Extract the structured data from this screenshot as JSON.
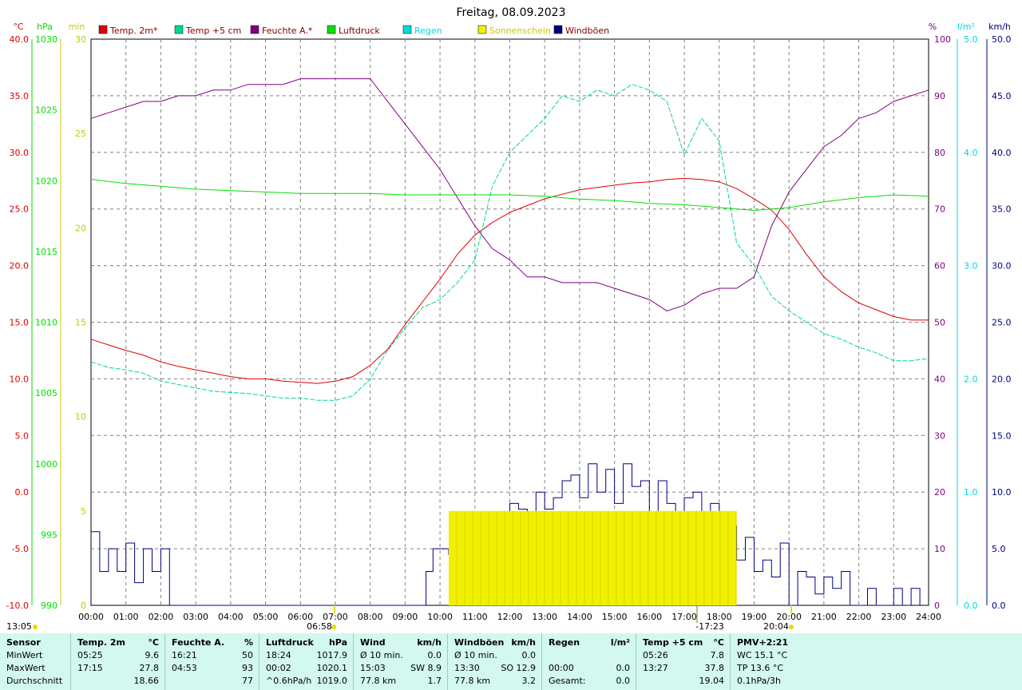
{
  "title": "Freitag, 08.09.2023",
  "colors": {
    "temp": "#e00000",
    "temp5": "#00d890",
    "feuchte": "#800080",
    "luftdruck": "#00e000",
    "regen": "#00d8e0",
    "sonne": "#f0f000",
    "wind": "#000080",
    "grid": "#808080",
    "footer_bg": "#d2f8f0"
  },
  "axes": {
    "temp": {
      "unit": "°C",
      "ticks": [
        "40.0",
        "35.0",
        "30.0",
        "25.0",
        "20.0",
        "15.0",
        "10.0",
        "5.0",
        "0.0",
        "-5.0",
        "-10.0"
      ],
      "range": [
        -10,
        40
      ]
    },
    "pressure": {
      "unit": "hPa",
      "ticks": [
        "1030",
        "1025",
        "1020",
        "1015",
        "1010",
        "1005",
        "1000",
        "995",
        "990"
      ],
      "range": [
        990,
        1030
      ]
    },
    "minutes": {
      "unit": "min",
      "ticks": [
        "30",
        "25",
        "20",
        "15",
        "10",
        "5",
        "0"
      ],
      "range": [
        0,
        30
      ]
    },
    "percent": {
      "unit": "%",
      "ticks": [
        "100",
        "90",
        "80",
        "70",
        "60",
        "50",
        "40",
        "30",
        "20",
        "10",
        "0"
      ],
      "range": [
        0,
        100
      ]
    },
    "rain": {
      "unit": "l/m²",
      "ticks": [
        "5.0",
        "4.0",
        "3.0",
        "2.0",
        "1.0",
        "0.0"
      ],
      "range": [
        0,
        5
      ]
    },
    "kmh": {
      "unit": "km/h",
      "ticks": [
        "50.0",
        "45.0",
        "40.0",
        "35.0",
        "30.0",
        "25.0",
        "20.0",
        "15.0",
        "10.0",
        "5.0",
        "0.0"
      ],
      "range": [
        0,
        50
      ]
    },
    "x_ticks": [
      "00:00",
      "01:00",
      "02:00",
      "03:00",
      "04:00",
      "05:00",
      "06:00",
      "07:00",
      "08:00",
      "09:00",
      "10:00",
      "11:00",
      "12:00",
      "13:00",
      "14:00",
      "15:00",
      "16:00",
      "17:00",
      "18:00",
      "19:00",
      "20:00",
      "21:00",
      "22:00",
      "23:00",
      "24:00"
    ]
  },
  "legend": [
    {
      "label": "Temp. 2m*",
      "color": "#e00000"
    },
    {
      "label": "Temp +5 cm",
      "color": "#00d890"
    },
    {
      "label": "Feuchte A.*",
      "color": "#800080"
    },
    {
      "label": "Luftdruck",
      "color": "#00e000"
    },
    {
      "label": "Regen",
      "color": "#00d8e0"
    },
    {
      "label": "Sonnenschein",
      "color": "#f0f000"
    },
    {
      "label": "Windböen",
      "color": "#000080"
    }
  ],
  "markers": {
    "sunrise": "06:58",
    "sunset": "20:04",
    "moon": "13:05",
    "noon": "-17:23"
  },
  "chart_data": {
    "type": "line",
    "x_unit": "hour",
    "series": [
      {
        "name": "Temp. 2m*",
        "axis": "temp",
        "x": [
          0,
          0.5,
          1,
          1.5,
          2,
          2.5,
          3,
          3.5,
          4,
          4.5,
          5,
          5.5,
          6,
          6.5,
          7,
          7.5,
          8,
          8.5,
          9,
          9.5,
          10,
          10.5,
          11,
          11.5,
          12,
          12.5,
          13,
          13.5,
          14,
          14.5,
          15,
          15.5,
          16,
          16.5,
          17,
          17.5,
          18,
          18.5,
          19,
          19.5,
          20,
          20.5,
          21,
          21.5,
          22,
          22.5,
          23,
          23.5,
          24
        ],
        "y": [
          13.5,
          13.0,
          12.5,
          12.1,
          11.5,
          11.1,
          10.8,
          10.5,
          10.2,
          10.0,
          10.0,
          9.8,
          9.7,
          9.6,
          9.8,
          10.2,
          11.2,
          12.6,
          14.8,
          16.8,
          18.8,
          21.0,
          22.7,
          23.8,
          24.7,
          25.3,
          25.9,
          26.3,
          26.7,
          26.9,
          27.1,
          27.3,
          27.4,
          27.6,
          27.7,
          27.6,
          27.4,
          26.8,
          25.9,
          24.9,
          23.2,
          21.0,
          19.0,
          17.7,
          16.7,
          16.1,
          15.5,
          15.2,
          15.2
        ]
      },
      {
        "name": "Temp +5 cm",
        "axis": "temp",
        "x": [
          0,
          0.5,
          1,
          1.5,
          2,
          2.5,
          3,
          3.5,
          4,
          4.5,
          5,
          5.5,
          6,
          6.5,
          7,
          7.5,
          8,
          8.5,
          9,
          9.5,
          10,
          10.5,
          11,
          11.5,
          12,
          12.5,
          13,
          13.5,
          14,
          14.5,
          15,
          15.5,
          16,
          16.5,
          17,
          17.5,
          18,
          18.5,
          19,
          19.5,
          20,
          20.5,
          21,
          21.5,
          22,
          22.5,
          23,
          23.5,
          24
        ],
        "y": [
          11.5,
          11.0,
          10.8,
          10.5,
          9.8,
          9.5,
          9.2,
          8.9,
          8.8,
          8.7,
          8.5,
          8.3,
          8.3,
          8.1,
          8.1,
          8.5,
          10.0,
          12.5,
          14.5,
          16.3,
          17.0,
          18.5,
          20.5,
          27.0,
          30.0,
          31.5,
          33.0,
          35.0,
          34.5,
          35.5,
          35.0,
          36.0,
          35.5,
          34.5,
          29.8,
          33.0,
          31.0,
          22.0,
          20.0,
          17.3,
          16.0,
          15.0,
          14.0,
          13.5,
          12.8,
          12.3,
          11.6,
          11.6,
          11.8
        ]
      },
      {
        "name": "Feuchte A.*",
        "axis": "percent",
        "x": [
          0,
          0.5,
          1,
          1.5,
          2,
          2.5,
          3,
          3.5,
          4,
          4.5,
          5,
          5.5,
          6,
          6.5,
          7,
          7.5,
          8,
          8.5,
          9,
          9.5,
          10,
          10.5,
          11,
          11.5,
          12,
          12.5,
          13,
          13.5,
          14,
          14.5,
          15,
          15.5,
          16,
          16.5,
          17,
          17.5,
          18,
          18.5,
          19,
          19.5,
          20,
          20.5,
          21,
          21.5,
          22,
          22.5,
          23,
          23.5,
          24
        ],
        "y": [
          86,
          87,
          88,
          89,
          89,
          90,
          90,
          91,
          91,
          92,
          92,
          92,
          93,
          93,
          93,
          93,
          93,
          89,
          85,
          81,
          77,
          72,
          67,
          63,
          61,
          58,
          58,
          57,
          57,
          57,
          56,
          55,
          54,
          52,
          53,
          55,
          56,
          56,
          58,
          67,
          73,
          77,
          81,
          83,
          86,
          87,
          89,
          90,
          91
        ]
      },
      {
        "name": "Luftdruck",
        "axis": "pressure",
        "x": [
          0,
          1,
          2,
          3,
          4,
          5,
          6,
          7,
          8,
          9,
          10,
          11,
          12,
          13,
          14,
          15,
          16,
          17,
          18,
          19,
          20,
          21,
          22,
          23,
          24
        ],
        "y": [
          1020.1,
          1019.8,
          1019.6,
          1019.4,
          1019.3,
          1019.2,
          1019.1,
          1019.1,
          1019.1,
          1019.0,
          1019.0,
          1019.0,
          1019.0,
          1018.9,
          1018.7,
          1018.6,
          1018.4,
          1018.3,
          1018.1,
          1017.9,
          1018.1,
          1018.5,
          1018.8,
          1019.0,
          1018.9
        ]
      },
      {
        "name": "Windböen",
        "axis": "kmh",
        "x": [
          0,
          0.25,
          0.5,
          0.75,
          1,
          1.25,
          1.5,
          1.75,
          2,
          2.25,
          9.4,
          9.6,
          9.8,
          10,
          10.25,
          10.5,
          10.75,
          11,
          11.25,
          11.5,
          11.75,
          12,
          12.25,
          12.5,
          12.75,
          13,
          13.25,
          13.5,
          13.75,
          14,
          14.25,
          14.5,
          14.75,
          15,
          15.25,
          15.5,
          15.75,
          16,
          16.25,
          16.5,
          16.75,
          17,
          17.25,
          17.5,
          17.75,
          18,
          18.25,
          18.5,
          18.75,
          19,
          19.25,
          19.5,
          19.75,
          20,
          20.25,
          20.5,
          20.75,
          21,
          21.25,
          21.5,
          21.75,
          22,
          22.25,
          22.5,
          23,
          23.25,
          23.5,
          23.75
        ],
        "y": [
          6.5,
          3.0,
          5.0,
          3.0,
          5.5,
          2.0,
          5.0,
          3.0,
          5.0,
          0.0,
          0.0,
          3.0,
          5.0,
          5.0,
          4.5,
          5.0,
          5.0,
          4.0,
          6.0,
          7.5,
          7.0,
          9.0,
          8.5,
          7.5,
          10.0,
          8.5,
          9.5,
          11.0,
          11.5,
          9.5,
          12.5,
          10.0,
          12.0,
          9.0,
          12.5,
          10.5,
          11.0,
          8.0,
          11.0,
          9.0,
          7.5,
          9.5,
          10.0,
          7.5,
          9.0,
          6.5,
          7.0,
          4.0,
          6.0,
          3.0,
          4.0,
          2.5,
          5.5,
          0.0,
          3.0,
          2.5,
          1.0,
          2.5,
          1.5,
          3.0,
          0.0,
          0.0,
          1.5,
          0.0,
          1.5,
          0.0,
          1.5,
          0.0
        ]
      },
      {
        "name": "Sonnenschein",
        "axis": "minutes",
        "type": "bar",
        "x": [
          10.25,
          18.5
        ],
        "y": [
          5,
          5
        ]
      }
    ]
  },
  "footer": {
    "columns": [
      {
        "header": [
          "Sensor",
          "",
          ""
        ],
        "rows": [
          [
            "MinWert",
            "",
            ""
          ],
          [
            "MaxWert",
            "",
            ""
          ],
          [
            "Durchschnitt",
            "",
            ""
          ]
        ]
      },
      {
        "header": [
          "Temp. 2m",
          "",
          "°C"
        ],
        "rows": [
          [
            "05:25",
            "",
            "9.6"
          ],
          [
            "17:15",
            "",
            "27.8"
          ],
          [
            "",
            "",
            "18.66"
          ]
        ]
      },
      {
        "header": [
          "Feuchte A.",
          "",
          "%"
        ],
        "rows": [
          [
            "16:21",
            "",
            "50"
          ],
          [
            "04:53",
            "",
            "93"
          ],
          [
            "",
            "",
            "77"
          ]
        ]
      },
      {
        "header": [
          "Luftdruck",
          "",
          "hPa"
        ],
        "rows": [
          [
            "18:24",
            "",
            "1017.9"
          ],
          [
            "00:02",
            "",
            "1020.1"
          ],
          [
            "^0.6hPa/h",
            "",
            "1019.0"
          ]
        ]
      },
      {
        "header": [
          "Wind",
          "",
          "km/h"
        ],
        "rows": [
          [
            "Ø 10 min.",
            "",
            "0.0"
          ],
          [
            "15:03",
            "SW 8.9",
            ""
          ],
          [
            "77.8 km",
            "",
            "1.7"
          ]
        ]
      },
      {
        "header": [
          "Windböen",
          "",
          "km/h"
        ],
        "rows": [
          [
            "Ø 10 min.",
            "",
            "0.0"
          ],
          [
            "13:30",
            "SO 12.9",
            ""
          ],
          [
            "77.8 km",
            "",
            "3.2"
          ]
        ]
      },
      {
        "header": [
          "Regen",
          "",
          "l/m²"
        ],
        "rows": [
          [
            "",
            "",
            ""
          ],
          [
            "00:00",
            "",
            "0.0"
          ],
          [
            "Gesamt:",
            "",
            "0.0"
          ]
        ]
      },
      {
        "header": [
          "Temp +5 cm",
          "",
          "°C"
        ],
        "rows": [
          [
            "05:26",
            "",
            "7.8"
          ],
          [
            "13:27",
            "",
            "37.8"
          ],
          [
            "",
            "",
            "19.04"
          ]
        ]
      },
      {
        "header": [
          "PMV+2:21",
          "",
          ""
        ],
        "rows": [
          [
            "WC 15.1 °C",
            "",
            ""
          ],
          [
            "TP 13.6 °C",
            "",
            ""
          ],
          [
            "0.1hPa/3h",
            "",
            ""
          ]
        ]
      }
    ]
  }
}
